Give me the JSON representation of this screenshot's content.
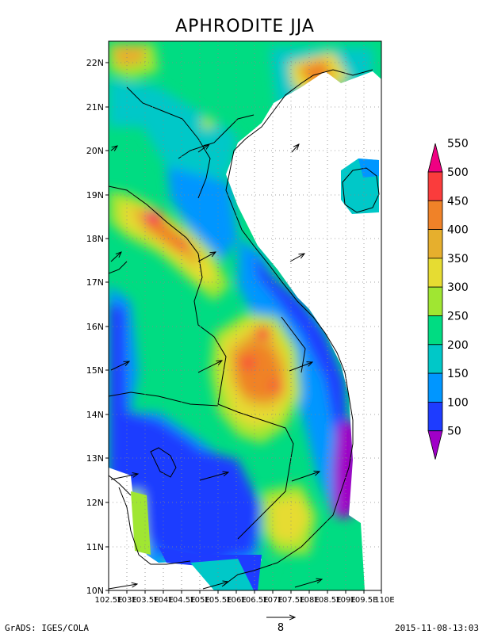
{
  "title": "APHRODITE JJA",
  "lat_labels": [
    "10N",
    "11N",
    "12N",
    "13N",
    "14N",
    "15N",
    "16N",
    "17N",
    "18N",
    "19N",
    "20N",
    "21N",
    "22N"
  ],
  "lon_labels": [
    "102.5E",
    "103E",
    "103.5E",
    "104E",
    "104.5E",
    "105E",
    "105.5E",
    "106E",
    "106.5E",
    "107E",
    "107.5E",
    "108E",
    "108.5E",
    "109E",
    "109.5E",
    "110E"
  ],
  "colorbar": {
    "labels": [
      "50",
      "100",
      "150",
      "200",
      "250",
      "300",
      "350",
      "400",
      "450",
      "500",
      "550"
    ],
    "colors": [
      "#a000c8",
      "#1e3cff",
      "#0096ff",
      "#00c8c8",
      "#00dc82",
      "#a0e632",
      "#e6dc32",
      "#e6af2d",
      "#f08228",
      "#fa3c3c",
      "#f00082"
    ]
  },
  "vector_scale": {
    "label": "8"
  },
  "footer": {
    "left": "GrADS: IGES/COLA",
    "right": "2015-11-08-13:03"
  }
}
